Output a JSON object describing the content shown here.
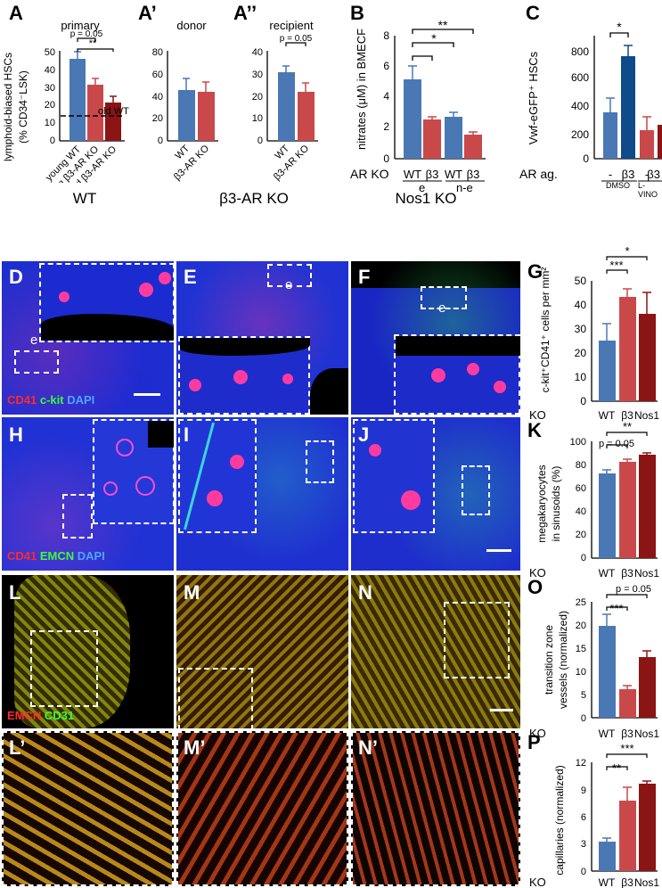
{
  "panels": {
    "A": {
      "label": "A",
      "title": "primary",
      "ylabel1": "lymphoid-biased HSCs",
      "ylabel2": "(% CD34⁻LSK)",
      "yticks": [
        "50",
        "40",
        "30",
        "20",
        "10",
        "0"
      ],
      "categories": [
        "young WT",
        "young β3-AR KO",
        "old β3-AR KO"
      ],
      "annot_p": "p = 0.05",
      "annot_sig": "**",
      "ref_line_label": "old WT"
    },
    "A1": {
      "label": "A’",
      "title": "donor",
      "yticks": [
        "80",
        "60",
        "40",
        "20",
        "0"
      ],
      "categories": [
        "WT",
        "β3-AR KO"
      ]
    },
    "A2": {
      "label": "A’’",
      "title": "recipient",
      "yticks": [
        "40",
        "30",
        "20",
        "10",
        "0"
      ],
      "categories": [
        "WT",
        "β3-AR KO"
      ],
      "annot_p": "p = 0.05"
    },
    "B": {
      "label": "B",
      "ylabel": "nitrates (μM) in BMECF",
      "yticks": [
        "8",
        "6",
        "4",
        "2",
        "0"
      ],
      "row_label": "AR KO",
      "categories": [
        "WT",
        "β3",
        "WT",
        "β3"
      ],
      "groups": [
        "e",
        "n-e"
      ],
      "sig1": "**",
      "sig2": "*"
    },
    "C": {
      "label": "C",
      "ylabel": "Vwf-eGFP⁺ HSCs",
      "yticks": [
        "800",
        "600",
        "400",
        "200",
        "0"
      ],
      "row_label": "AR ag.",
      "categories": [
        "-",
        "β3",
        "-",
        "β3"
      ],
      "groups": [
        "DMSO",
        "L-VINO"
      ],
      "sig1": "*"
    },
    "G": {
      "label": "G",
      "ylabel": "c-kit⁺CD41⁺ cells per mm²",
      "yticks": [
        "50",
        "40",
        "30",
        "20",
        "10",
        "0"
      ],
      "row_label": "KO",
      "categories": [
        "WT",
        "β3",
        "Nos1"
      ],
      "sig1": "***",
      "sig2": "*"
    },
    "K": {
      "label": "K",
      "ylabel1": "megakaryocytes",
      "ylabel2": "in sinusoids (%)",
      "yticks": [
        "100",
        "80",
        "60",
        "40",
        "20",
        "0"
      ],
      "row_label": "KO",
      "categories": [
        "WT",
        "β3",
        "Nos1"
      ],
      "annot_p": "p = 0.05",
      "sig2": "**"
    },
    "O": {
      "label": "O",
      "ylabel1": "transition zone",
      "ylabel2": "vessels (normalized)",
      "yticks": [
        "25",
        "20",
        "15",
        "10",
        "5",
        "0"
      ],
      "row_label": "KO",
      "categories": [
        "WT",
        "β3",
        "Nos1"
      ],
      "annot_p": "p = 0.05",
      "sig1": "***"
    },
    "P": {
      "label": "P",
      "ylabel": "capillaries (normalized)",
      "yticks": [
        "12",
        "9",
        "6",
        "3",
        "0"
      ],
      "row_label": "KO",
      "categories": [
        "WT",
        "β3",
        "Nos1"
      ],
      "sig1": "**",
      "sig2": "***"
    }
  },
  "micrographs": {
    "columns": [
      "WT",
      "β3-AR KO",
      "Nos1 KO"
    ],
    "row1_labels": [
      "D",
      "E",
      "F"
    ],
    "row1_stain": [
      "CD41",
      "c-kit",
      "DAPI"
    ],
    "row1_inset": "e",
    "row2_labels": [
      "H",
      "I",
      "J"
    ],
    "row2_stain": [
      "CD41",
      "EMCN",
      "DAPI"
    ],
    "row3_labels": [
      "L",
      "M",
      "N"
    ],
    "row3_stain": [
      "EMCN",
      "CD31"
    ],
    "row4_labels": [
      "L’",
      "M’",
      "N’"
    ]
  },
  "colors": {
    "blue": "#4a78b5",
    "light_red": "#c9494b",
    "dark_red": "#8b1414"
  },
  "chart_data": [
    {
      "panel": "A",
      "type": "bar",
      "categories": [
        "young WT",
        "young β3-AR KO",
        "old β3-AR KO"
      ],
      "values": [
        47,
        33,
        22
      ],
      "errors": [
        3.5,
        3,
        3
      ],
      "ylim": [
        0,
        55
      ],
      "reference_line": {
        "label": "old WT",
        "value": 26
      },
      "ylabel": "lymphoid-biased HSCs (% CD34⁻LSK)",
      "title": "primary"
    },
    {
      "panel": "A’",
      "type": "bar",
      "categories": [
        "WT",
        "β3-AR KO"
      ],
      "values": [
        53,
        52
      ],
      "errors": [
        8,
        7
      ],
      "ylim": [
        0,
        80
      ],
      "title": "donor"
    },
    {
      "panel": "A’’",
      "type": "bar",
      "categories": [
        "WT",
        "β3-AR KO"
      ],
      "values": [
        32,
        22
      ],
      "errors": [
        2.5,
        3.5
      ],
      "ylim": [
        0,
        40
      ],
      "title": "recipient"
    },
    {
      "panel": "B",
      "type": "bar",
      "categories": [
        "WT e",
        "β3 e",
        "WT n-e",
        "β3 n-e"
      ],
      "values": [
        5.3,
        2.7,
        2.8,
        1.6
      ],
      "errors": [
        0.9,
        0.15,
        0.3,
        0.15
      ],
      "ylim": [
        0,
        8
      ],
      "ylabel": "nitrates (μM) in BMECF"
    },
    {
      "panel": "C",
      "type": "bar",
      "categories": [
        "- DMSO",
        "β3 DMSO",
        "- L-VINO",
        "β3 L-VINO"
      ],
      "values": [
        380,
        770,
        210,
        265
      ],
      "errors": [
        100,
        80,
        130,
        130
      ],
      "ylim": [
        0,
        850
      ],
      "ylabel": "Vwf-eGFP⁺ HSCs"
    },
    {
      "panel": "G",
      "type": "bar",
      "categories": [
        "WT",
        "β3",
        "Nos1"
      ],
      "values": [
        25,
        43,
        36
      ],
      "errors": [
        7,
        3.5,
        9
      ],
      "ylim": [
        0,
        50
      ],
      "ylabel": "c-kit⁺CD41⁺ cells per mm²"
    },
    {
      "panel": "K",
      "type": "bar",
      "categories": [
        "WT",
        "β3",
        "Nos1"
      ],
      "values": [
        73,
        83,
        89
      ],
      "errors": [
        3,
        2.5,
        1.5
      ],
      "ylim": [
        0,
        100
      ],
      "ylabel": "megakaryocytes in sinusoids (%)"
    },
    {
      "panel": "O",
      "type": "bar",
      "categories": [
        "WT",
        "β3",
        "Nos1"
      ],
      "values": [
        19.8,
        6.2,
        13
      ],
      "errors": [
        2.5,
        0.7,
        1.3
      ],
      "ylim": [
        0,
        25
      ],
      "ylabel": "transition zone vessels (normalized)"
    },
    {
      "panel": "P",
      "type": "bar",
      "categories": [
        "WT",
        "β3",
        "Nos1"
      ],
      "values": [
        3.3,
        7.8,
        9.7
      ],
      "errors": [
        0.4,
        1.5,
        0.3
      ],
      "ylim": [
        0,
        12
      ],
      "ylabel": "capillaries (normalized)"
    }
  ]
}
